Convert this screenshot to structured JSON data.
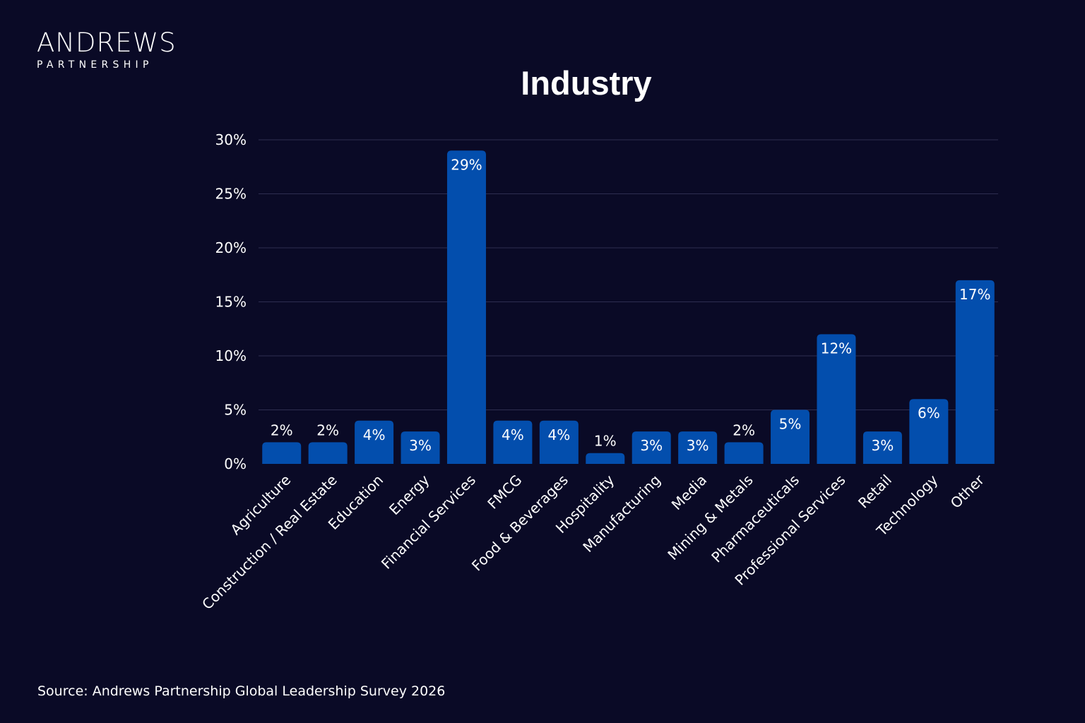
{
  "logo": {
    "main": "ANDREWS",
    "sub": "PARTNERSHIP"
  },
  "source": "Source: Andrews Partnership Global Leadership Survey 2026",
  "colors": {
    "background": "#0a0a26",
    "bar": "#034ead",
    "grid": "#2e2e50",
    "text": "#ffffff"
  },
  "chart_data": {
    "type": "bar",
    "title": "Industry",
    "xlabel": "",
    "ylabel": "",
    "ylim": [
      0,
      30
    ],
    "yticks": [
      0,
      5,
      10,
      15,
      20,
      25,
      30
    ],
    "ytick_labels": [
      "0%",
      "5%",
      "10%",
      "15%",
      "20%",
      "25%",
      "30%"
    ],
    "grid": true,
    "categories": [
      "Agriculture",
      "Construction / Real Estate",
      "Education",
      "Energy",
      "Financial Services",
      "FMCG",
      "Food & Beverages",
      "Hospitality",
      "Manufacturing",
      "Media",
      "Mining & Metals",
      "Pharmaceuticals",
      "Professional Services",
      "Retail",
      "Technology",
      "Other"
    ],
    "values": [
      2,
      2,
      4,
      3,
      29,
      4,
      4,
      1,
      3,
      3,
      2,
      5,
      12,
      3,
      6,
      17
    ],
    "value_labels": [
      "2%",
      "2%",
      "4%",
      "3%",
      "29%",
      "4%",
      "4%",
      "1%",
      "3%",
      "3%",
      "2%",
      "5%",
      "12%",
      "3%",
      "6%",
      "17%"
    ]
  }
}
